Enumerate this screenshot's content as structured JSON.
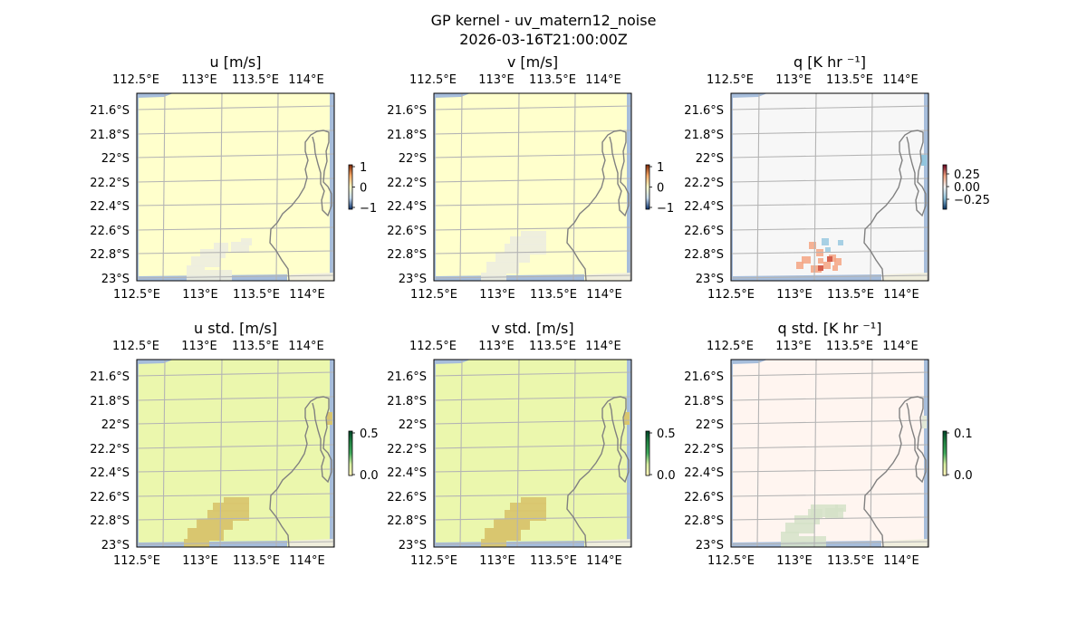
{
  "figure": {
    "title": "GP kernel - uv_matern12_noise",
    "subtitle": "2026-03-16T21:00:00Z"
  },
  "colors": {
    "ocean": "#a6bddb",
    "land": "#f0eedd",
    "grid": "#b4b4b4",
    "coast": "#808080",
    "frame": "#000000"
  },
  "chart_data": [
    {
      "type": "heatmap",
      "title": "u [m/s]",
      "lon_ticks": [
        "112.5°E",
        "113°E",
        "113.5°E",
        "114°E"
      ],
      "lat_ticks": [
        "21.6°S",
        "21.8°S",
        "22°S",
        "22.2°S",
        "22.4°S",
        "22.6°S",
        "22.8°S",
        "23°S"
      ],
      "colorbar": {
        "ticks": [
          "1",
          "0",
          "−1"
        ],
        "range": [
          -1,
          1
        ],
        "colormap": "diverging"
      },
      "background_color": "#ffffcc",
      "feature_color": "#ededdf"
    },
    {
      "type": "heatmap",
      "title": "v [m/s]",
      "lon_ticks": [
        "112.5°E",
        "113°E",
        "113.5°E",
        "114°E"
      ],
      "lat_ticks": [
        "21.6°S",
        "21.8°S",
        "22°S",
        "22.2°S",
        "22.4°S",
        "22.6°S",
        "22.8°S",
        "23°S"
      ],
      "colorbar": {
        "ticks": [
          "1",
          "0",
          "−1"
        ],
        "range": [
          -1,
          1
        ],
        "colormap": "diverging"
      },
      "background_color": "#ffffcc",
      "feature_color": "#ededdf"
    },
    {
      "type": "heatmap",
      "title": "q [K hr ⁻¹]",
      "lon_ticks": [
        "112.5°E",
        "113°E",
        "113.5°E",
        "114°E"
      ],
      "lat_ticks": [
        "21.6°S",
        "21.8°S",
        "22°S",
        "22.2°S",
        "22.4°S",
        "22.6°S",
        "22.8°S",
        "23°S"
      ],
      "colorbar": {
        "ticks": [
          "0.25",
          "0.00",
          "−0.25"
        ],
        "range": [
          -0.25,
          0.25
        ],
        "colormap": "RdBu_r"
      },
      "background_color": "#f7f7f7",
      "feature_color": "#f4a582"
    },
    {
      "type": "heatmap",
      "title": "u std. [m/s]",
      "lon_ticks": [
        "112.5°E",
        "113°E",
        "113.5°E",
        "114°E"
      ],
      "lat_ticks": [
        "21.6°S",
        "21.8°S",
        "22°S",
        "22.2°S",
        "22.4°S",
        "22.6°S",
        "22.8°S",
        "23°S"
      ],
      "colorbar": {
        "ticks": [
          "0.5",
          "0.0"
        ],
        "range": [
          0,
          0.5
        ],
        "colormap": "sequential"
      },
      "background_color": "#ebf7ad",
      "feature_color": "#d9c66f"
    },
    {
      "type": "heatmap",
      "title": "v std. [m/s]",
      "lon_ticks": [
        "112.5°E",
        "113°E",
        "113.5°E",
        "114°E"
      ],
      "lat_ticks": [
        "21.6°S",
        "21.8°S",
        "22°S",
        "22.2°S",
        "22.4°S",
        "22.6°S",
        "22.8°S",
        "23°S"
      ],
      "colorbar": {
        "ticks": [
          "0.5",
          "0.0"
        ],
        "range": [
          0,
          0.5
        ],
        "colormap": "sequential"
      },
      "background_color": "#ebf7ad",
      "feature_color": "#d9c66f"
    },
    {
      "type": "heatmap",
      "title": "q std. [K hr ⁻¹]",
      "lon_ticks": [
        "112.5°E",
        "113°E",
        "113.5°E",
        "114°E"
      ],
      "lat_ticks": [
        "21.6°S",
        "21.8°S",
        "22°S",
        "22.2°S",
        "22.4°S",
        "22.6°S",
        "22.8°S",
        "23°S"
      ],
      "colorbar": {
        "ticks": [
          "0.1",
          "0.0"
        ],
        "range": [
          0,
          0.1
        ],
        "colormap": "sequential"
      },
      "background_color": "#fff5f0",
      "feature_color": "#d5e2c8"
    }
  ]
}
